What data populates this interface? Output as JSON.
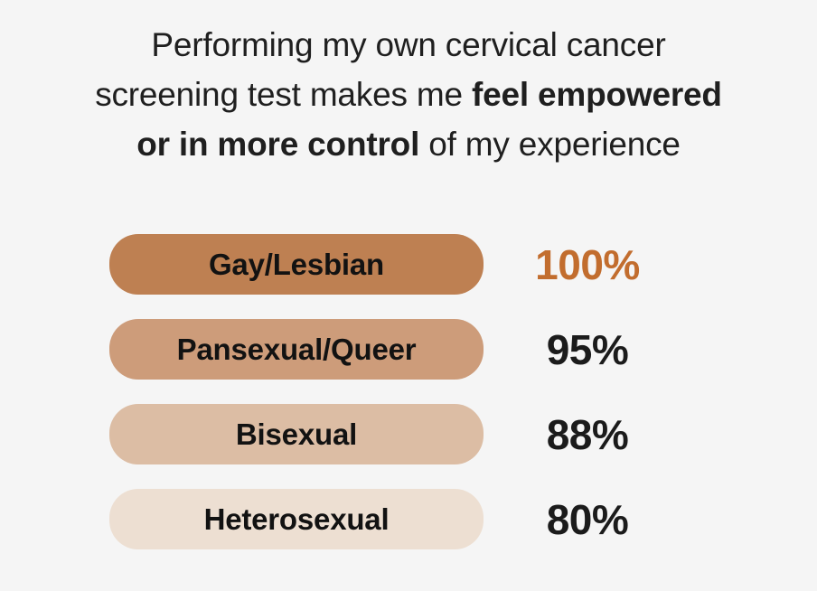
{
  "title": {
    "line1": "Performing my own cervical cancer",
    "line2_regular": "screening test makes me ",
    "line2_bold": "feel empowered",
    "line3_bold": "or in more control",
    "line3_regular": " of my experience"
  },
  "colors": {
    "background": "#f5f5f5",
    "title_text": "#1f1f1f",
    "label_text": "#121212",
    "value_text": "#1b1b1b",
    "highlight_value_text": "#c26d2e"
  },
  "chart_data": {
    "type": "bar",
    "orientation": "horizontal",
    "title": "Performing my own cervical cancer screening test makes me feel empowered or in more control of my experience",
    "categories": [
      "Gay/Lesbian",
      "Pansexual/Queer",
      "Bisexual",
      "Heterosexual"
    ],
    "values": [
      100,
      95,
      88,
      80
    ],
    "value_labels": [
      "100%",
      "95%",
      "88%",
      "80%"
    ],
    "bar_colors": [
      "#be8052",
      "#cd9c7a",
      "#dcbda4",
      "#eddfd2"
    ],
    "value_colors": [
      "#c26d2e",
      "#1b1b1b",
      "#1b1b1b",
      "#1b1b1b"
    ],
    "xlim": [
      0,
      100
    ],
    "bars_equal_width": true,
    "grid": false,
    "legend": false,
    "highlighted_category": "Gay/Lesbian"
  }
}
